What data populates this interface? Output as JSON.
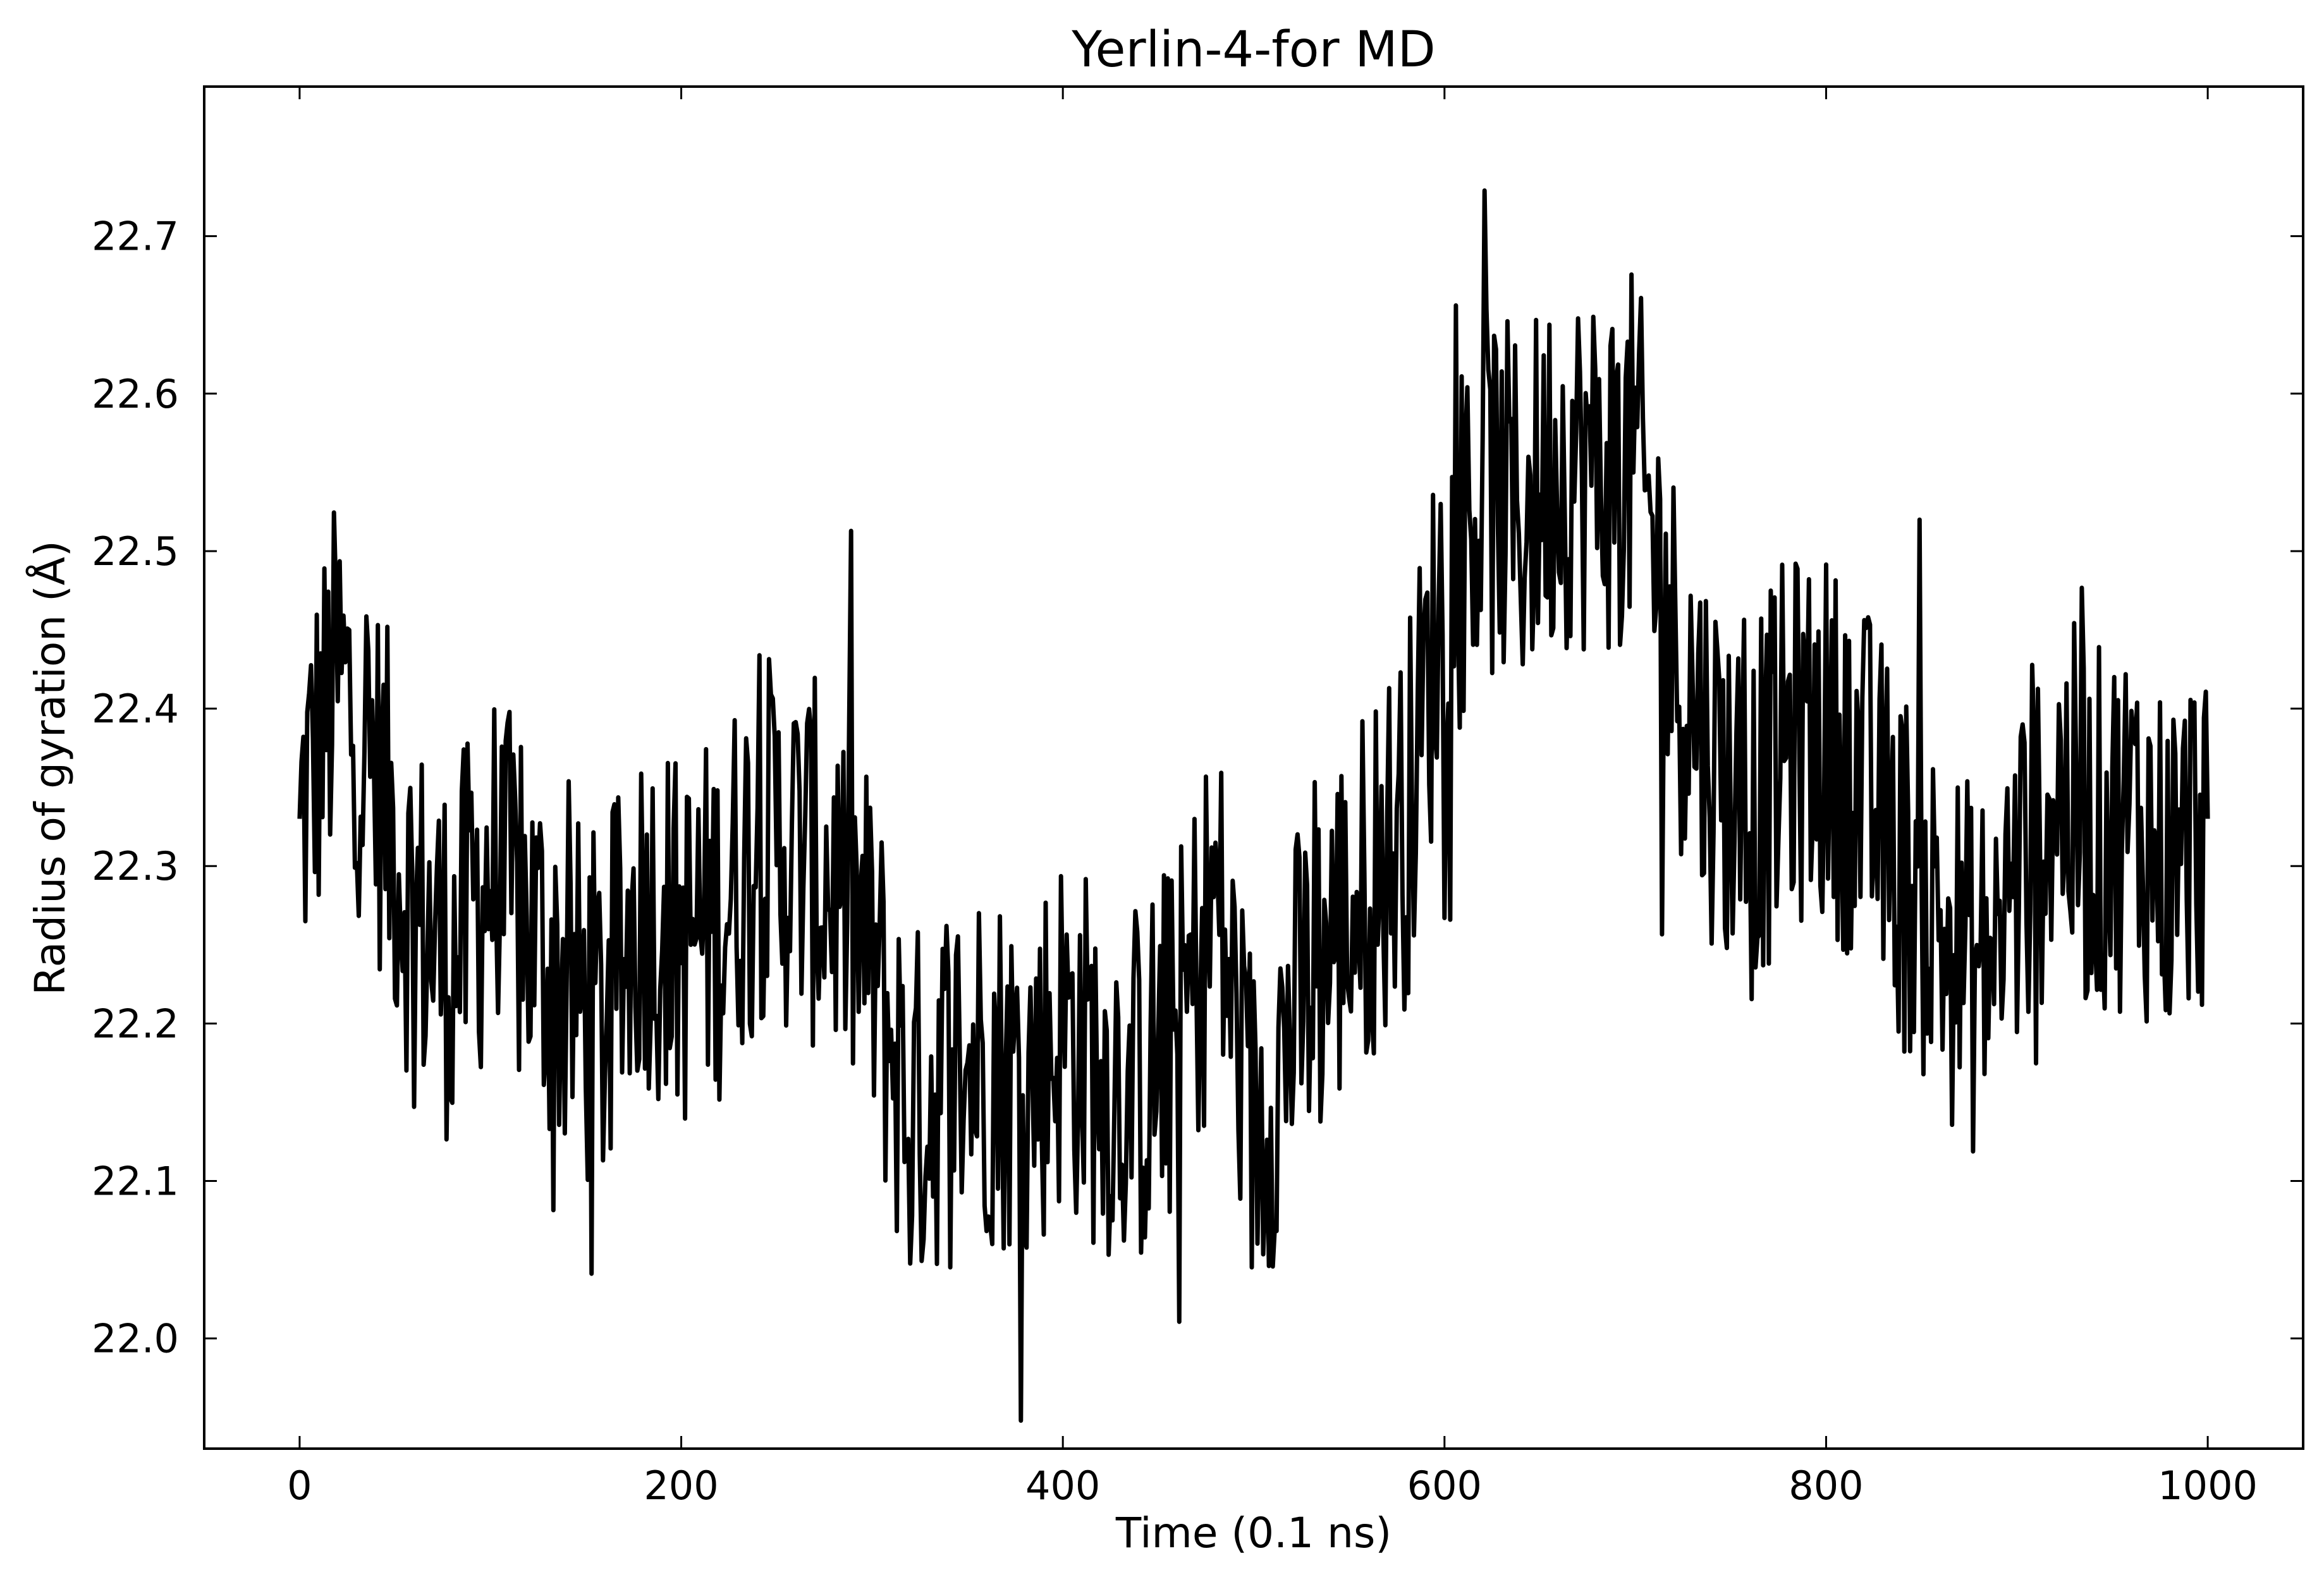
{
  "chart_data": {
    "type": "line",
    "title": "Yerlin-4-for MD",
    "xlabel": "Time (0.1 ns)",
    "ylabel": "Radius of gyration (Å)",
    "xlim": [
      -50,
      1050
    ],
    "ylim": [
      21.93,
      22.795
    ],
    "xticks": [
      0,
      200,
      400,
      600,
      800,
      1000
    ],
    "xtick_labels": [
      "0",
      "200",
      "400",
      "600",
      "800",
      "1000"
    ],
    "yticks": [
      22.0,
      22.1,
      22.2,
      22.3,
      22.4,
      22.5,
      22.6,
      22.7
    ],
    "ytick_labels": [
      "22.0",
      "22.1",
      "22.2",
      "22.3",
      "22.4",
      "22.5",
      "22.6",
      "22.7"
    ],
    "grid": false,
    "legend": "none",
    "line_color": "#000000",
    "series": [
      {
        "x": [
          0,
          20,
          40,
          60,
          80,
          100,
          120,
          140,
          160,
          180,
          200,
          220,
          240,
          260,
          280,
          300,
          320,
          340,
          360,
          380,
          400,
          420,
          440,
          460,
          480,
          500,
          520,
          540,
          560,
          580,
          600,
          620,
          640,
          660,
          680,
          700,
          720,
          740,
          760,
          780,
          800,
          820,
          840,
          860,
          880,
          900,
          920,
          940,
          960,
          980,
          1000
        ],
        "values": [
          22.33,
          22.42,
          22.36,
          22.27,
          22.24,
          22.3,
          22.26,
          22.22,
          22.2,
          22.28,
          22.25,
          22.27,
          22.32,
          22.31,
          22.29,
          22.24,
          22.14,
          22.17,
          22.18,
          22.16,
          22.2,
          22.17,
          22.16,
          22.19,
          22.28,
          22.13,
          22.2,
          22.25,
          22.29,
          22.33,
          22.48,
          22.54,
          22.52,
          22.56,
          22.55,
          22.56,
          22.44,
          22.37,
          22.33,
          22.38,
          22.38,
          22.35,
          22.3,
          22.26,
          22.23,
          22.29,
          22.35,
          22.32,
          22.33,
          22.3,
          22.33
        ]
      }
    ],
    "noise_amplitude": 0.12
  }
}
